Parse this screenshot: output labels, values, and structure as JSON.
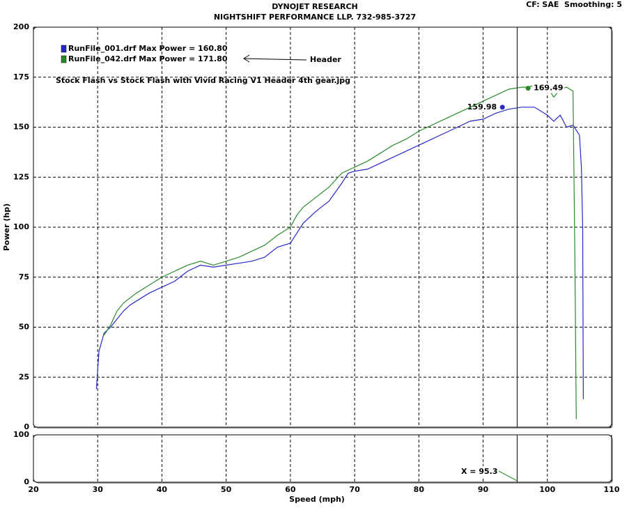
{
  "chart_data": [
    {
      "type": "line",
      "title": "DYNOJET RESEARCH",
      "subtitle": "NIGHTSHIFT PERFORMANCE LLP. 732-985-3727",
      "settings_text": "CF: SAE  Smoothing: 5",
      "y_label": "Power (hp)",
      "annotation": "Stock Flash vs Stock Flash with Vivid Racing V1 Header 4th gear.jpg",
      "arrow_label": "Header",
      "xlim": [
        20,
        110
      ],
      "ylim": [
        0,
        200
      ],
      "yticks": [
        0,
        25,
        50,
        75,
        100,
        125,
        150,
        175,
        200
      ],
      "grid": true,
      "series": [
        {
          "name": "RunFile_001.drf Max Power = 160.80",
          "color": "#2828c8",
          "x": [
            29.8,
            30.2,
            31,
            32,
            33,
            34,
            35,
            36,
            38,
            40,
            42,
            44,
            46,
            48,
            50,
            52,
            54,
            56,
            58,
            60,
            61,
            62,
            64,
            66,
            68,
            69,
            70,
            72,
            74,
            76,
            78,
            80,
            82,
            84,
            86,
            88,
            90,
            92,
            94,
            96,
            98,
            100,
            101,
            102,
            103,
            104,
            105,
            105.3,
            105.5,
            105.6
          ],
          "values": [
            19,
            38,
            47,
            50,
            54,
            58,
            61,
            63,
            67,
            70,
            73,
            78,
            81,
            80,
            81,
            82,
            83,
            85,
            90,
            92,
            97,
            102,
            108,
            113,
            122,
            127,
            128,
            129,
            132,
            135,
            138,
            141,
            144,
            147,
            150,
            153,
            154,
            157,
            159,
            160,
            160,
            156,
            153,
            156,
            150,
            151,
            146,
            130,
            100,
            14
          ],
          "marker": {
            "x": 93,
            "y": 159.98
          }
        },
        {
          "name": "RunFile_042.drf Max Power = 171.80",
          "color": "#2a8a2a",
          "x": [
            31,
            32,
            33,
            34,
            36,
            38,
            40,
            42,
            44,
            46,
            48,
            50,
            52,
            54,
            56,
            58,
            60,
            61,
            62,
            64,
            66,
            68,
            70,
            72,
            74,
            76,
            78,
            80,
            82,
            84,
            86,
            88,
            90,
            92,
            94,
            96,
            97,
            98,
            100,
            101,
            102,
            103,
            104,
            104.3,
            104.5
          ],
          "values": [
            46,
            51,
            58,
            62,
            67,
            71,
            75,
            78,
            81,
            83,
            81,
            83,
            85,
            88,
            91,
            96,
            100,
            106,
            110,
            115,
            120,
            127,
            130,
            133,
            137,
            141,
            144,
            148,
            151,
            154,
            157,
            160,
            163,
            166,
            169,
            170,
            170,
            171,
            170,
            165,
            169,
            170,
            168,
            80,
            4
          ],
          "marker": {
            "x": 97,
            "y": 169.49
          }
        }
      ]
    },
    {
      "type": "line",
      "x_label": "Speed (mph)",
      "xlim": [
        20,
        110
      ],
      "xticks": [
        20,
        30,
        40,
        50,
        60,
        70,
        80,
        90,
        100,
        110
      ],
      "ylim": [
        0,
        100
      ],
      "yticks": [
        0,
        100
      ],
      "grid": true,
      "cursor": {
        "x": 95.3,
        "label": "X = 95.3"
      }
    }
  ]
}
